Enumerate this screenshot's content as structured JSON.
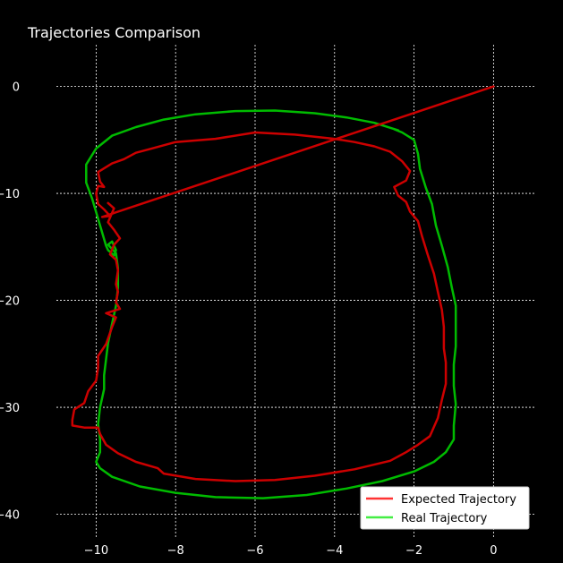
{
  "chart_data": {
    "type": "line",
    "title": "Trajectories Comparison",
    "xlabel": "",
    "ylabel": "",
    "xlim": [
      -11.0,
      1.05
    ],
    "ylim": [
      -42.3,
      3.9
    ],
    "xticks": [
      -10,
      -8,
      -6,
      -4,
      -2,
      0
    ],
    "yticks": [
      0,
      -10,
      -20,
      -30,
      -40
    ],
    "grid": true,
    "legend_position": "lower-right",
    "series": [
      {
        "name": "Expected Trajectory",
        "color": "#cc0000",
        "legend_color": "#ff3333",
        "points": [
          [
            0.0,
            0.0
          ],
          [
            -9.85,
            -12.2
          ],
          [
            -9.65,
            -12.1
          ],
          [
            -9.8,
            -11.5
          ],
          [
            -9.95,
            -11.0
          ],
          [
            -10.0,
            -10.0
          ],
          [
            -9.95,
            -9.3
          ],
          [
            -9.8,
            -9.4
          ],
          [
            -9.9,
            -8.9
          ],
          [
            -9.95,
            -8.0
          ],
          [
            -9.6,
            -7.2
          ],
          [
            -9.3,
            -6.8
          ],
          [
            -9.0,
            -6.2
          ],
          [
            -8.6,
            -5.8
          ],
          [
            -8.0,
            -5.2
          ],
          [
            -7.0,
            -4.9
          ],
          [
            -6.0,
            -4.3
          ],
          [
            -5.0,
            -4.5
          ],
          [
            -4.0,
            -4.9
          ],
          [
            -3.5,
            -5.2
          ],
          [
            -3.0,
            -5.6
          ],
          [
            -2.6,
            -6.1
          ],
          [
            -2.3,
            -7.0
          ],
          [
            -2.1,
            -7.9
          ],
          [
            -2.2,
            -8.8
          ],
          [
            -2.5,
            -9.4
          ],
          [
            -2.4,
            -10.2
          ],
          [
            -2.2,
            -10.8
          ],
          [
            -2.1,
            -11.7
          ],
          [
            -1.9,
            -12.6
          ],
          [
            -1.8,
            -14.0
          ],
          [
            -1.65,
            -15.8
          ],
          [
            -1.5,
            -17.5
          ],
          [
            -1.4,
            -19.2
          ],
          [
            -1.3,
            -20.9
          ],
          [
            -1.25,
            -22.5
          ],
          [
            -1.25,
            -24.5
          ],
          [
            -1.2,
            -25.8
          ],
          [
            -1.2,
            -27.8
          ],
          [
            -1.3,
            -29.3
          ],
          [
            -1.4,
            -31.0
          ],
          [
            -1.6,
            -32.7
          ],
          [
            -1.9,
            -33.5
          ],
          [
            -2.2,
            -34.2
          ],
          [
            -2.6,
            -35.0
          ],
          [
            -3.5,
            -35.8
          ],
          [
            -4.5,
            -36.4
          ],
          [
            -5.5,
            -36.8
          ],
          [
            -6.5,
            -36.9
          ],
          [
            -7.5,
            -36.7
          ],
          [
            -8.3,
            -36.2
          ],
          [
            -8.45,
            -35.7
          ],
          [
            -9.0,
            -35.1
          ],
          [
            -9.45,
            -34.3
          ],
          [
            -9.75,
            -33.5
          ],
          [
            -9.9,
            -32.5
          ],
          [
            -9.95,
            -31.9
          ],
          [
            -10.3,
            -31.9
          ],
          [
            -10.6,
            -31.7
          ],
          [
            -10.6,
            -31.2
          ],
          [
            -10.55,
            -30.2
          ],
          [
            -10.3,
            -29.6
          ],
          [
            -10.2,
            -28.5
          ],
          [
            -10.0,
            -27.5
          ],
          [
            -9.95,
            -26.3
          ],
          [
            -9.95,
            -25.2
          ],
          [
            -9.75,
            -24.1
          ],
          [
            -9.6,
            -22.5
          ],
          [
            -9.5,
            -21.6
          ],
          [
            -9.75,
            -21.2
          ],
          [
            -9.4,
            -20.8
          ],
          [
            -9.5,
            -20.2
          ],
          [
            -9.45,
            -19.2
          ],
          [
            -9.5,
            -18.5
          ],
          [
            -9.45,
            -17.2
          ],
          [
            -9.5,
            -16.2
          ],
          [
            -9.65,
            -15.7
          ],
          [
            -9.55,
            -14.8
          ],
          [
            -9.4,
            -14.2
          ],
          [
            -9.55,
            -13.4
          ],
          [
            -9.7,
            -12.7
          ],
          [
            -9.55,
            -11.4
          ],
          [
            -9.7,
            -10.9
          ]
        ]
      },
      {
        "name": "Real Trajectory",
        "color": "#00bb00",
        "legend_color": "#44ee44",
        "points": [
          [
            -2.4,
            -4.1
          ],
          [
            -2.5,
            -4.0
          ],
          [
            -2.3,
            -4.3
          ],
          [
            -2.0,
            -5.0
          ],
          [
            -1.9,
            -6.3
          ],
          [
            -1.85,
            -7.7
          ],
          [
            -1.7,
            -9.5
          ],
          [
            -1.55,
            -11.0
          ],
          [
            -1.45,
            -13.0
          ],
          [
            -1.3,
            -14.9
          ],
          [
            -1.15,
            -16.9
          ],
          [
            -1.05,
            -18.8
          ],
          [
            -0.95,
            -20.5
          ],
          [
            -0.95,
            -22.3
          ],
          [
            -0.95,
            -24.3
          ],
          [
            -1.0,
            -26.0
          ],
          [
            -1.0,
            -28.0
          ],
          [
            -0.95,
            -29.7
          ],
          [
            -1.0,
            -31.7
          ],
          [
            -1.0,
            -33.0
          ],
          [
            -1.2,
            -34.2
          ],
          [
            -1.5,
            -35.1
          ],
          [
            -2.0,
            -36.0
          ],
          [
            -2.8,
            -36.9
          ],
          [
            -3.7,
            -37.6
          ],
          [
            -4.7,
            -38.2
          ],
          [
            -5.8,
            -38.5
          ],
          [
            -7.0,
            -38.4
          ],
          [
            -8.0,
            -38.0
          ],
          [
            -8.9,
            -37.4
          ],
          [
            -9.6,
            -36.5
          ],
          [
            -9.9,
            -35.7
          ],
          [
            -10.0,
            -35.1
          ],
          [
            -9.9,
            -34.2
          ],
          [
            -9.9,
            -33.0
          ],
          [
            -9.95,
            -31.6
          ],
          [
            -9.9,
            -30.0
          ],
          [
            -9.8,
            -28.3
          ],
          [
            -9.8,
            -27.0
          ],
          [
            -9.75,
            -25.5
          ],
          [
            -9.7,
            -24.0
          ],
          [
            -9.6,
            -22.2
          ],
          [
            -9.5,
            -20.5
          ],
          [
            -9.45,
            -18.8
          ],
          [
            -9.45,
            -17.0
          ],
          [
            -9.5,
            -15.6
          ],
          [
            -9.7,
            -14.8
          ],
          [
            -9.6,
            -14.5
          ],
          [
            -9.5,
            -15.3
          ],
          [
            -9.55,
            -15.8
          ],
          [
            -9.7,
            -15.3
          ],
          [
            -9.75,
            -14.9
          ],
          [
            -10.1,
            -10.5
          ],
          [
            -10.25,
            -9.0
          ],
          [
            -10.25,
            -7.3
          ],
          [
            -10.0,
            -5.8
          ],
          [
            -9.6,
            -4.6
          ],
          [
            -9.0,
            -3.8
          ],
          [
            -8.3,
            -3.1
          ],
          [
            -7.5,
            -2.6
          ],
          [
            -6.5,
            -2.3
          ],
          [
            -5.5,
            -2.25
          ],
          [
            -4.5,
            -2.5
          ],
          [
            -3.7,
            -2.9
          ],
          [
            -3.0,
            -3.4
          ],
          [
            -2.4,
            -4.1
          ]
        ]
      }
    ]
  }
}
